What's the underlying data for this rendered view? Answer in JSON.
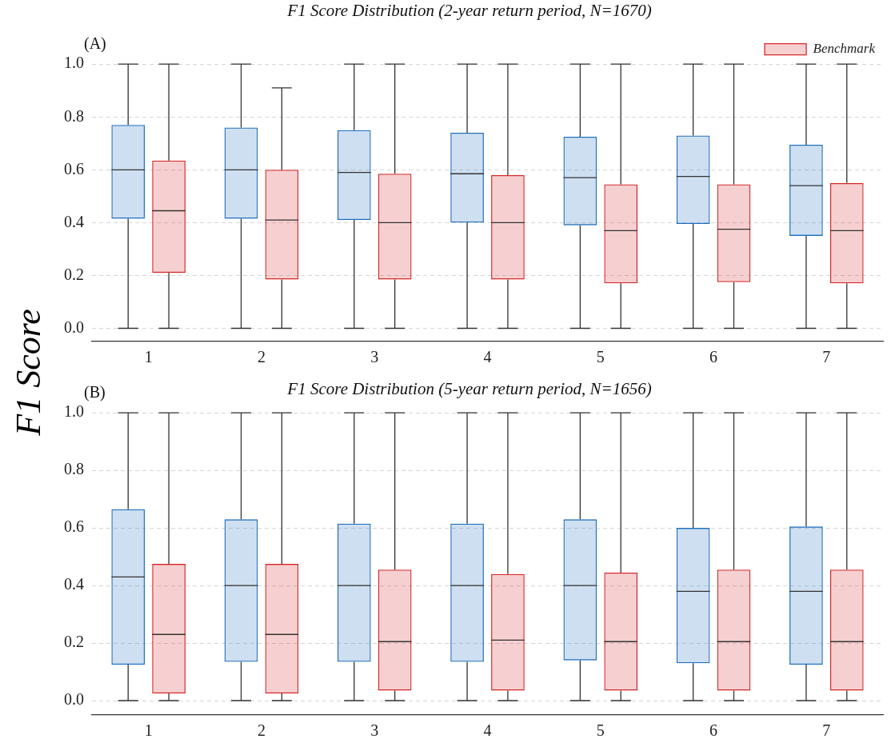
{
  "chart_data": [
    {
      "type": "box",
      "title": "F1 Score Distribution (2-year return period, N=1670)",
      "ylabel": "F1 Score",
      "annotations": [
        "(A)"
      ],
      "categories": [
        "1",
        "2",
        "3",
        "4",
        "5",
        "6",
        "7"
      ],
      "ylim": [
        -0.05,
        1
      ],
      "yticks": [
        {
          "value": 0,
          "label": "0.0"
        },
        {
          "value": 0.2,
          "label": "0.2"
        },
        {
          "value": 0.4,
          "label": "0.4"
        },
        {
          "value": 0.6,
          "label": "0.6"
        },
        {
          "value": 0.8,
          "label": "0.8"
        },
        {
          "value": 1,
          "label": "1.0"
        }
      ],
      "grid": "y",
      "legend": "top right",
      "series": [
        {
          "color": "#1f6fbf",
          "boxes": [
            {
              "low": 0,
              "q1": 0.415,
              "median": 0.6,
              "q3": 0.77,
              "high": 1
            },
            {
              "low": 0,
              "q1": 0.415,
              "median": 0.6,
              "q3": 0.76,
              "high": 1
            },
            {
              "low": 0,
              "q1": 0.41,
              "median": 0.59,
              "q3": 0.75,
              "high": 1
            },
            {
              "low": 0,
              "q1": 0.4,
              "median": 0.585,
              "q3": 0.74,
              "high": 1
            },
            {
              "low": 0,
              "q1": 0.39,
              "median": 0.57,
              "q3": 0.725,
              "high": 1
            },
            {
              "low": 0,
              "q1": 0.395,
              "median": 0.575,
              "q3": 0.73,
              "high": 1
            },
            {
              "low": 0,
              "q1": 0.35,
              "median": 0.54,
              "q3": 0.695,
              "high": 1
            }
          ]
        },
        {
          "name": "Benchmark",
          "color": "#d62728",
          "boxes": [
            {
              "low": 0,
              "q1": 0.21,
              "median": 0.445,
              "q3": 0.635,
              "high": 1
            },
            {
              "low": 0,
              "q1": 0.185,
              "median": 0.41,
              "q3": 0.6,
              "high": 0.91
            },
            {
              "low": 0,
              "q1": 0.185,
              "median": 0.4,
              "q3": 0.585,
              "high": 1
            },
            {
              "low": 0,
              "q1": 0.185,
              "median": 0.4,
              "q3": 0.58,
              "high": 1
            },
            {
              "low": 0,
              "q1": 0.17,
              "median": 0.37,
              "q3": 0.545,
              "high": 1
            },
            {
              "low": 0,
              "q1": 0.175,
              "median": 0.375,
              "q3": 0.545,
              "high": 1
            },
            {
              "low": 0,
              "q1": 0.17,
              "median": 0.37,
              "q3": 0.55,
              "high": 1
            }
          ]
        }
      ]
    },
    {
      "type": "box",
      "title": "F1 Score Distribution (5-year return period, N=1656)",
      "annotations": [
        "(B)"
      ],
      "categories": [
        "1",
        "2",
        "3",
        "4",
        "5",
        "6",
        "7"
      ],
      "ylim": [
        -0.05,
        1
      ],
      "yticks": [
        {
          "value": 0,
          "label": "0.0"
        },
        {
          "value": 0.2,
          "label": "0.2"
        },
        {
          "value": 0.4,
          "label": "0.4"
        },
        {
          "value": 0.6,
          "label": "0.6"
        },
        {
          "value": 0.8,
          "label": "0.8"
        },
        {
          "value": 1,
          "label": "1.0"
        }
      ],
      "grid": "y",
      "series": [
        {
          "color": "#1f6fbf",
          "boxes": [
            {
              "low": 0,
              "q1": 0.125,
              "median": 0.43,
              "q3": 0.665,
              "high": 1
            },
            {
              "low": 0,
              "q1": 0.135,
              "median": 0.4,
              "q3": 0.63,
              "high": 1
            },
            {
              "low": 0,
              "q1": 0.135,
              "median": 0.4,
              "q3": 0.615,
              "high": 1
            },
            {
              "low": 0,
              "q1": 0.135,
              "median": 0.4,
              "q3": 0.615,
              "high": 1
            },
            {
              "low": 0,
              "q1": 0.14,
              "median": 0.4,
              "q3": 0.63,
              "high": 1
            },
            {
              "low": 0,
              "q1": 0.13,
              "median": 0.38,
              "q3": 0.6,
              "high": 1
            },
            {
              "low": 0,
              "q1": 0.125,
              "median": 0.38,
              "q3": 0.605,
              "high": 1
            }
          ]
        },
        {
          "color": "#d62728",
          "boxes": [
            {
              "low": 0,
              "q1": 0.025,
              "median": 0.23,
              "q3": 0.475,
              "high": 1
            },
            {
              "low": 0,
              "q1": 0.025,
              "median": 0.23,
              "q3": 0.475,
              "high": 1
            },
            {
              "low": 0,
              "q1": 0.035,
              "median": 0.205,
              "q3": 0.455,
              "high": 1
            },
            {
              "low": 0,
              "q1": 0.035,
              "median": 0.21,
              "q3": 0.44,
              "high": 1
            },
            {
              "low": 0,
              "q1": 0.035,
              "median": 0.205,
              "q3": 0.445,
              "high": 1
            },
            {
              "low": 0,
              "q1": 0.035,
              "median": 0.205,
              "q3": 0.455,
              "high": 1
            },
            {
              "low": 0,
              "q1": 0.035,
              "median": 0.205,
              "q3": 0.455,
              "high": 1
            }
          ]
        }
      ]
    }
  ]
}
